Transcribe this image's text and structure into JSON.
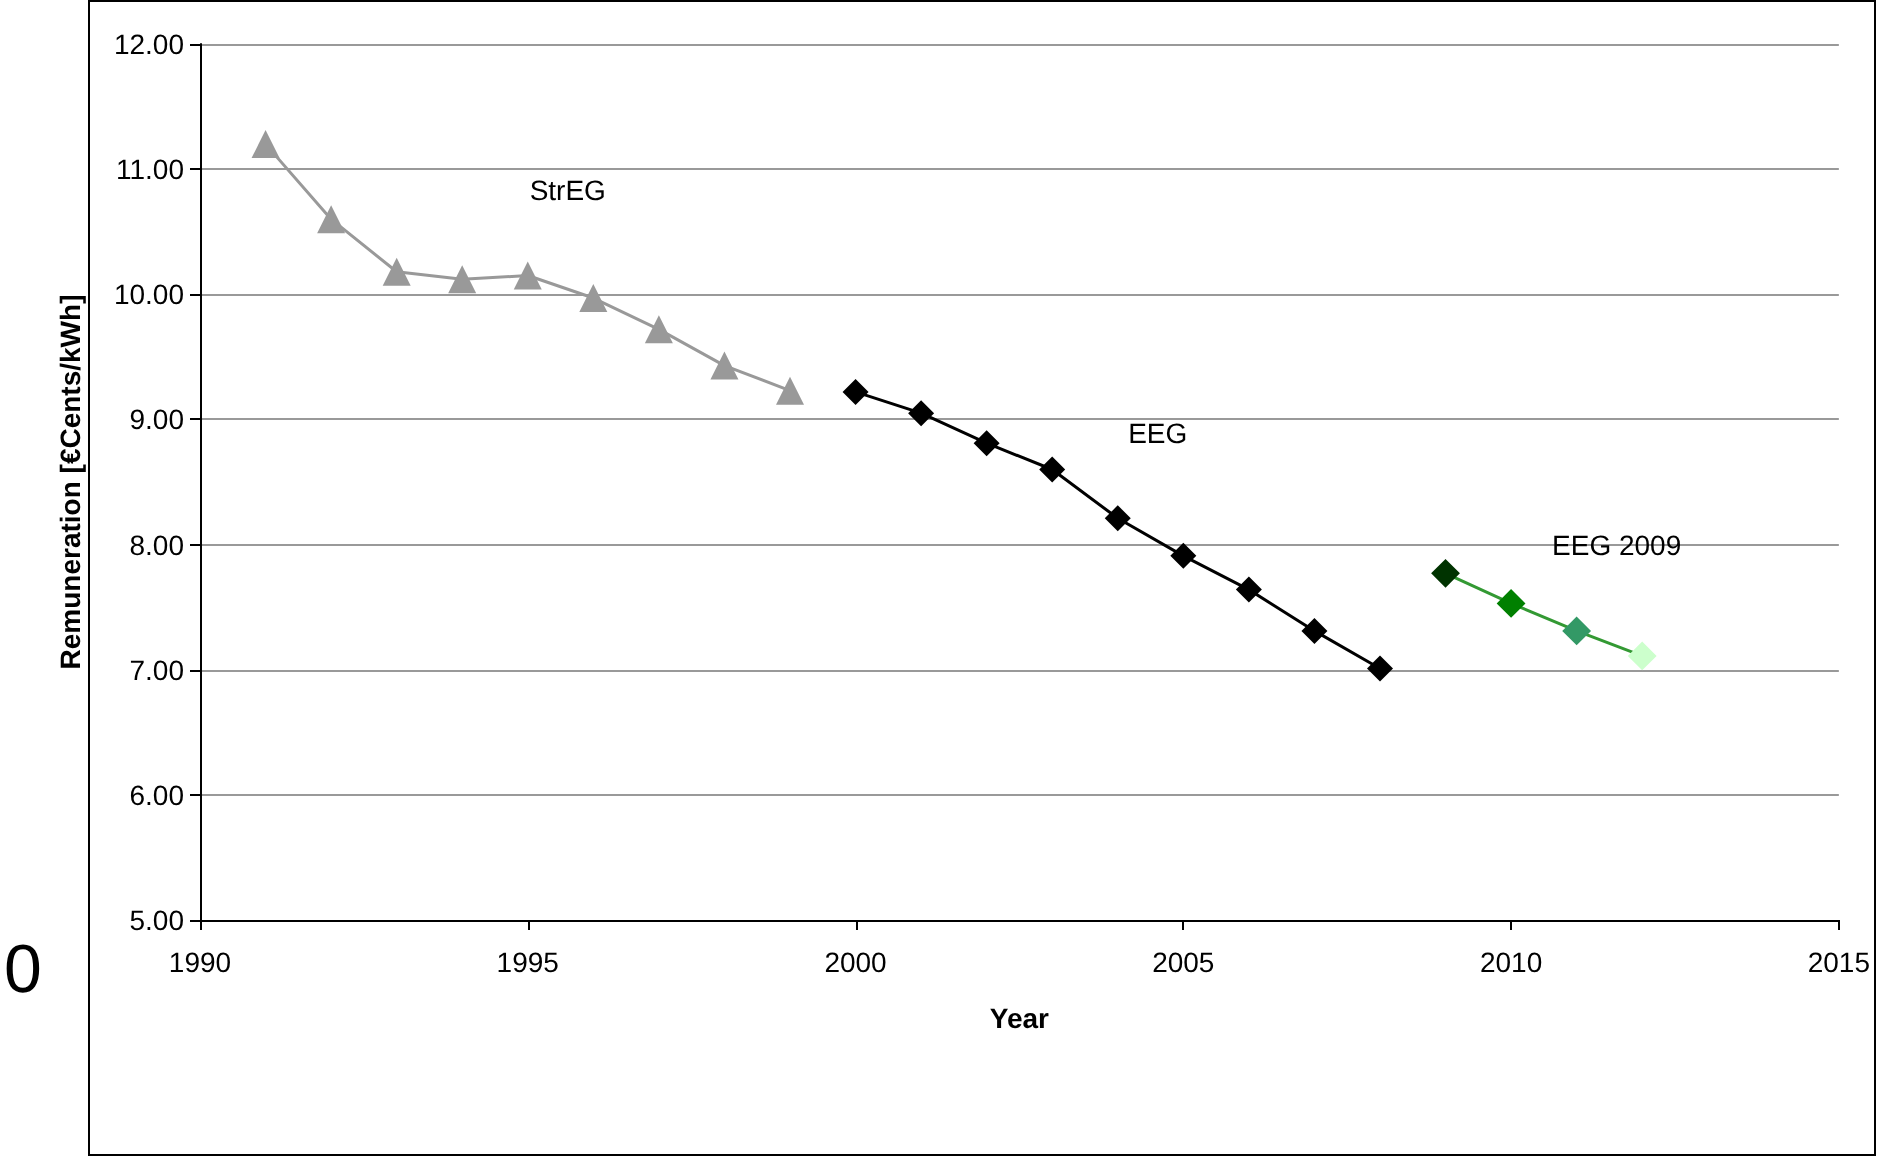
{
  "chart_data": {
    "type": "line",
    "xlabel": "Year",
    "ylabel": "Remuneration [€Cents/kWh]",
    "annotations": [
      "0"
    ],
    "xlim": [
      1990,
      2015
    ],
    "xticks": [
      1990,
      1995,
      2000,
      2005,
      2010,
      2015
    ],
    "ylim": [
      5,
      12
    ],
    "yticks": [
      {
        "value": 5,
        "label": "5.00"
      },
      {
        "value": 6,
        "label": "6.00"
      },
      {
        "value": 7,
        "label": "7.00"
      },
      {
        "value": 8,
        "label": "8.00"
      },
      {
        "value": 9,
        "label": "9.00"
      },
      {
        "value": 10,
        "label": "10.00"
      },
      {
        "value": 11,
        "label": "11.00"
      },
      {
        "value": 12,
        "label": "12.00"
      }
    ],
    "grid": "y",
    "legend": false,
    "series": [
      {
        "name": "StrEG",
        "color": "#999999",
        "marker": "triangle",
        "x": [
          1991,
          1992,
          1993,
          1994,
          1995,
          1996,
          1997,
          1998,
          1999
        ],
        "values": [
          11.2,
          10.6,
          10.18,
          10.12,
          10.15,
          9.97,
          9.72,
          9.43,
          9.23
        ]
      },
      {
        "name": "EEG",
        "color": "#000000",
        "marker": "diamond",
        "x": [
          2000,
          2001,
          2002,
          2003,
          2004,
          2005,
          2006,
          2007,
          2008
        ],
        "values": [
          9.22,
          9.05,
          8.81,
          8.6,
          8.21,
          7.91,
          7.64,
          7.31,
          7.01
        ]
      },
      {
        "name": "EEG 2009",
        "color": "#339933",
        "colors": [
          "#003300",
          "#008000",
          "#339966",
          "#ccffcc"
        ],
        "marker": "diamond",
        "x": [
          2009,
          2010,
          2011,
          2012
        ],
        "values": [
          7.77,
          7.53,
          7.31,
          7.11
        ]
      }
    ]
  }
}
